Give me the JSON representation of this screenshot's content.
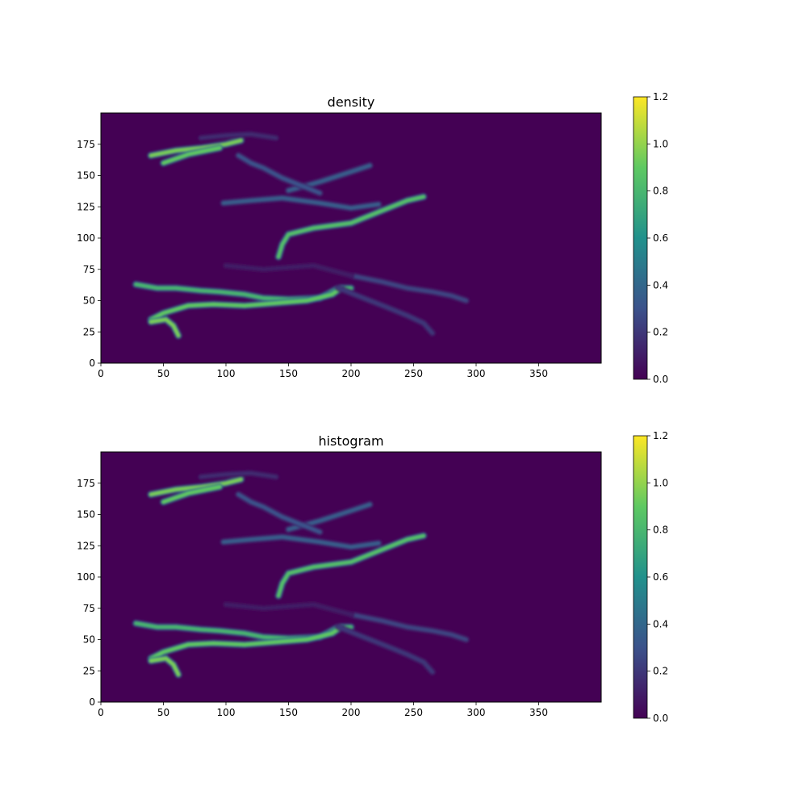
{
  "figure": {
    "background": "#ffffff"
  },
  "colormap": {
    "name": "viridis",
    "stops": [
      "#440154",
      "#3b528b",
      "#21918c",
      "#5ec962",
      "#fde725"
    ]
  },
  "chart_data": [
    {
      "type": "heatmap",
      "title": "density",
      "xlabel": "",
      "ylabel": "",
      "xlim": [
        0,
        400
      ],
      "ylim": [
        0,
        200
      ],
      "x_ticks": [
        0,
        50,
        100,
        150,
        200,
        250,
        300,
        350
      ],
      "y_ticks": [
        0,
        25,
        50,
        75,
        100,
        125,
        150,
        175
      ],
      "colorbar": {
        "range": [
          0,
          1.2
        ],
        "ticks": [
          "0.0",
          "0.2",
          "0.4",
          "0.6",
          "0.8",
          "1.0",
          "1.2"
        ]
      },
      "features": [
        {
          "points": [
            [
              28,
              63
            ],
            [
              45,
              60
            ],
            [
              60,
              60
            ],
            [
              80,
              58
            ],
            [
              95,
              57
            ],
            [
              115,
              55
            ],
            [
              130,
              52
            ],
            [
              150,
              51
            ],
            [
              175,
              52
            ],
            [
              190,
              60
            ],
            [
              200,
              60
            ]
          ],
          "value": 0.8
        },
        {
          "points": [
            [
              40,
              35
            ],
            [
              50,
              40
            ],
            [
              70,
              46
            ],
            [
              90,
              47
            ],
            [
              115,
              46
            ],
            [
              140,
              48
            ],
            [
              165,
              50
            ],
            [
              185,
              55
            ],
            [
              192,
              60
            ]
          ],
          "value": 0.9
        },
        {
          "points": [
            [
              40,
              33
            ],
            [
              52,
              35
            ],
            [
              58,
              30
            ],
            [
              62,
              22
            ]
          ],
          "value": 0.95
        },
        {
          "points": [
            [
              190,
              60
            ],
            [
              210,
              52
            ],
            [
              228,
              45
            ],
            [
              245,
              38
            ],
            [
              258,
              32
            ],
            [
              265,
              24
            ]
          ],
          "value": 0.2
        },
        {
          "points": [
            [
              200,
              70
            ],
            [
              225,
              65
            ],
            [
              245,
              60
            ],
            [
              265,
              57
            ],
            [
              280,
              54
            ],
            [
              292,
              50
            ]
          ],
          "value": 0.25
        },
        {
          "points": [
            [
              100,
              78
            ],
            [
              130,
              75
            ],
            [
              170,
              78
            ],
            [
              200,
              70
            ]
          ],
          "value": 0.1
        },
        {
          "points": [
            [
              142,
              85
            ],
            [
              145,
              95
            ],
            [
              150,
              103
            ],
            [
              170,
              108
            ],
            [
              200,
              112
            ],
            [
              220,
              120
            ],
            [
              245,
              130
            ],
            [
              258,
              133
            ]
          ],
          "value": 0.85
        },
        {
          "points": [
            [
              98,
              128
            ],
            [
              120,
              130
            ],
            [
              145,
              132
            ],
            [
              175,
              128
            ],
            [
              200,
              124
            ],
            [
              222,
              127
            ]
          ],
          "value": 0.35
        },
        {
          "points": [
            [
              150,
              138
            ],
            [
              175,
              145
            ],
            [
              200,
              153
            ],
            [
              215,
              158
            ]
          ],
          "value": 0.35
        },
        {
          "points": [
            [
              110,
              166
            ],
            [
              120,
              160
            ],
            [
              130,
              156
            ],
            [
              145,
              148
            ],
            [
              160,
              142
            ],
            [
              175,
              136
            ]
          ],
          "value": 0.3
        },
        {
          "points": [
            [
              40,
              166
            ],
            [
              60,
              170
            ],
            [
              80,
              172
            ],
            [
              100,
              175
            ],
            [
              112,
              178
            ]
          ],
          "value": 0.95
        },
        {
          "points": [
            [
              50,
              160
            ],
            [
              70,
              167
            ],
            [
              95,
              172
            ]
          ],
          "value": 0.9
        },
        {
          "points": [
            [
              80,
              180
            ],
            [
              100,
              182
            ],
            [
              120,
              183
            ],
            [
              140,
              180
            ]
          ],
          "value": 0.15
        }
      ]
    },
    {
      "type": "heatmap",
      "title": "histogram",
      "xlabel": "",
      "ylabel": "",
      "xlim": [
        0,
        400
      ],
      "ylim": [
        0,
        200
      ],
      "x_ticks": [
        0,
        50,
        100,
        150,
        200,
        250,
        300,
        350
      ],
      "y_ticks": [
        0,
        25,
        50,
        75,
        100,
        125,
        150,
        175
      ],
      "colorbar": {
        "range": [
          0,
          1.2
        ],
        "ticks": [
          "0.0",
          "0.2",
          "0.4",
          "0.6",
          "0.8",
          "1.0",
          "1.2"
        ]
      },
      "features": [
        {
          "points": [
            [
              28,
              63
            ],
            [
              45,
              60
            ],
            [
              60,
              60
            ],
            [
              80,
              58
            ],
            [
              95,
              57
            ],
            [
              115,
              55
            ],
            [
              130,
              52
            ],
            [
              150,
              51
            ],
            [
              175,
              52
            ],
            [
              190,
              60
            ],
            [
              200,
              60
            ]
          ],
          "value": 0.8
        },
        {
          "points": [
            [
              40,
              35
            ],
            [
              50,
              40
            ],
            [
              70,
              46
            ],
            [
              90,
              47
            ],
            [
              115,
              46
            ],
            [
              140,
              48
            ],
            [
              165,
              50
            ],
            [
              185,
              55
            ],
            [
              192,
              60
            ]
          ],
          "value": 0.9
        },
        {
          "points": [
            [
              40,
              33
            ],
            [
              52,
              35
            ],
            [
              58,
              30
            ],
            [
              62,
              22
            ]
          ],
          "value": 0.95
        },
        {
          "points": [
            [
              190,
              60
            ],
            [
              210,
              52
            ],
            [
              228,
              45
            ],
            [
              245,
              38
            ],
            [
              258,
              32
            ],
            [
              265,
              24
            ]
          ],
          "value": 0.2
        },
        {
          "points": [
            [
              200,
              70
            ],
            [
              225,
              65
            ],
            [
              245,
              60
            ],
            [
              265,
              57
            ],
            [
              280,
              54
            ],
            [
              292,
              50
            ]
          ],
          "value": 0.25
        },
        {
          "points": [
            [
              100,
              78
            ],
            [
              130,
              75
            ],
            [
              170,
              78
            ],
            [
              200,
              70
            ]
          ],
          "value": 0.1
        },
        {
          "points": [
            [
              142,
              85
            ],
            [
              145,
              95
            ],
            [
              150,
              103
            ],
            [
              170,
              108
            ],
            [
              200,
              112
            ],
            [
              220,
              120
            ],
            [
              245,
              130
            ],
            [
              258,
              133
            ]
          ],
          "value": 0.85
        },
        {
          "points": [
            [
              98,
              128
            ],
            [
              120,
              130
            ],
            [
              145,
              132
            ],
            [
              175,
              128
            ],
            [
              200,
              124
            ],
            [
              222,
              127
            ]
          ],
          "value": 0.35
        },
        {
          "points": [
            [
              150,
              138
            ],
            [
              175,
              145
            ],
            [
              200,
              153
            ],
            [
              215,
              158
            ]
          ],
          "value": 0.35
        },
        {
          "points": [
            [
              110,
              166
            ],
            [
              120,
              160
            ],
            [
              130,
              156
            ],
            [
              145,
              148
            ],
            [
              160,
              142
            ],
            [
              175,
              136
            ]
          ],
          "value": 0.3
        },
        {
          "points": [
            [
              40,
              166
            ],
            [
              60,
              170
            ],
            [
              80,
              172
            ],
            [
              100,
              175
            ],
            [
              112,
              178
            ]
          ],
          "value": 0.95
        },
        {
          "points": [
            [
              50,
              160
            ],
            [
              70,
              167
            ],
            [
              95,
              172
            ]
          ],
          "value": 0.9
        },
        {
          "points": [
            [
              80,
              180
            ],
            [
              100,
              182
            ],
            [
              120,
              183
            ],
            [
              140,
              180
            ]
          ],
          "value": 0.15
        }
      ]
    }
  ]
}
